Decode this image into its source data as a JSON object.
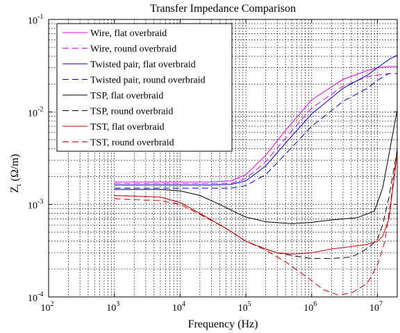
{
  "chart_data": {
    "type": "line",
    "title": "Transfer Impedance Comparison",
    "xlabel": "Frequency (Hz)",
    "ylabel_main": "Z",
    "ylabel_sub": "t",
    "ylabel_unit": "(Ω/m)",
    "x_scale": "log",
    "y_scale": "log",
    "xlim": [
      100,
      20000000
    ],
    "ylim": [
      0.0001,
      0.1
    ],
    "grid": true,
    "legend_position": "top-left",
    "x_ticks": [
      {
        "value": 100,
        "base": "10",
        "exp": "2"
      },
      {
        "value": 1000,
        "base": "10",
        "exp": "3"
      },
      {
        "value": 10000,
        "base": "10",
        "exp": "4"
      },
      {
        "value": 100000,
        "base": "10",
        "exp": "5"
      },
      {
        "value": 1000000,
        "base": "10",
        "exp": "6"
      },
      {
        "value": 10000000,
        "base": "10",
        "exp": "7"
      }
    ],
    "y_ticks": [
      {
        "value": 0.0001,
        "base": "10",
        "exp": "-4"
      },
      {
        "value": 0.001,
        "base": "10",
        "exp": "-3"
      },
      {
        "value": 0.01,
        "base": "10",
        "exp": "-2"
      },
      {
        "value": 0.1,
        "base": "10",
        "exp": "-1"
      }
    ],
    "series": [
      {
        "name": "Wire, flat overbraid",
        "color": "#e600e6",
        "dash": "solid",
        "x": [
          1000,
          10000,
          30000,
          60000,
          100000,
          200000,
          400000,
          1000000,
          3000000,
          7000000,
          10000000,
          15000000,
          20000000
        ],
        "y": [
          0.00175,
          0.00175,
          0.00175,
          0.0018,
          0.0021,
          0.0034,
          0.0063,
          0.0135,
          0.0225,
          0.028,
          0.03,
          0.031,
          0.031
        ]
      },
      {
        "name": "Wire, round overbraid",
        "color": "#e600e6",
        "dash": "dashed",
        "x": [
          1000,
          10000,
          30000,
          60000,
          100000,
          200000,
          400000,
          1000000,
          3000000,
          7000000,
          10000000,
          15000000,
          20000000
        ],
        "y": [
          0.00168,
          0.00168,
          0.00168,
          0.0017,
          0.0019,
          0.0029,
          0.0052,
          0.011,
          0.019,
          0.024,
          0.025,
          0.026,
          0.026
        ]
      },
      {
        "name": "Twisted pair, flat overbraid",
        "color": "#0000cc",
        "dash": "solid",
        "x": [
          1000,
          10000,
          30000,
          60000,
          100000,
          200000,
          400000,
          1000000,
          3000000,
          7000000,
          10000000,
          15000000,
          20000000
        ],
        "y": [
          0.00162,
          0.00162,
          0.00162,
          0.00165,
          0.0018,
          0.0026,
          0.0046,
          0.0095,
          0.018,
          0.025,
          0.03,
          0.037,
          0.041
        ]
      },
      {
        "name": "Twisted pair, round overbraid",
        "color": "#0000cc",
        "dash": "dashed",
        "x": [
          1000,
          10000,
          30000,
          60000,
          100000,
          200000,
          400000,
          1000000,
          3000000,
          7000000,
          10000000,
          15000000,
          20000000
        ],
        "y": [
          0.0015,
          0.0015,
          0.0015,
          0.0015,
          0.0016,
          0.0021,
          0.0035,
          0.007,
          0.013,
          0.018,
          0.022,
          0.026,
          0.026
        ]
      },
      {
        "name": "TSP, flat overbraid",
        "color": "#000000",
        "dash": "solid",
        "x": [
          1000,
          5000,
          10000,
          20000,
          40000,
          70000,
          100000,
          200000,
          500000,
          1000000,
          2000000,
          5000000,
          9000000,
          12000000,
          15000000,
          20000000
        ],
        "y": [
          0.00145,
          0.00145,
          0.0014,
          0.00125,
          0.001,
          0.00082,
          0.00073,
          0.00065,
          0.00062,
          0.00064,
          0.00068,
          0.00072,
          0.00085,
          0.0015,
          0.0035,
          0.0105
        ]
      },
      {
        "name": "TSP, round overbraid",
        "color": "#000000",
        "dash": "dashed",
        "x": [
          1000,
          5000,
          10000,
          20000,
          50000,
          100000,
          200000,
          300000,
          500000,
          1000000,
          2000000,
          4000000,
          6000000,
          8000000,
          10000000,
          12000000,
          15000000,
          20000000
        ],
        "y": [
          0.00125,
          0.0012,
          0.00105,
          0.0008,
          0.00055,
          0.0004,
          0.00033,
          0.0003,
          0.00028,
          0.00026,
          0.00026,
          0.00027,
          0.00031,
          0.00036,
          0.00042,
          0.0006,
          0.0012,
          0.0039
        ]
      },
      {
        "name": "TST, flat overbraid",
        "color": "#cc0000",
        "dash": "solid",
        "x": [
          1000,
          5000,
          10000,
          20000,
          50000,
          100000,
          200000,
          300000,
          500000,
          1000000,
          2000000,
          4000000,
          7000000,
          10000000,
          12000000,
          15000000,
          20000000
        ],
        "y": [
          0.00125,
          0.0012,
          0.00105,
          0.0008,
          0.00055,
          0.0004,
          0.00033,
          0.0003,
          0.00029,
          0.0003,
          0.00033,
          0.00035,
          0.00037,
          0.0004,
          0.00045,
          0.0007,
          0.0035
        ]
      },
      {
        "name": "TST, round overbraid",
        "color": "#cc0000",
        "dash": "dashed",
        "x": [
          1000,
          5000,
          10000,
          20000,
          50000,
          100000,
          200000,
          400000,
          700000,
          1000000,
          1500000,
          2500000,
          4000000,
          7000000,
          10000000,
          13000000,
          16000000,
          20000000
        ],
        "y": [
          0.00115,
          0.0011,
          0.001,
          0.00078,
          0.00055,
          0.0004,
          0.00032,
          0.00024,
          0.00018,
          0.00015,
          0.00012,
          0.000105,
          0.00011,
          0.00014,
          0.00022,
          0.0004,
          0.0011,
          0.004
        ]
      }
    ]
  }
}
